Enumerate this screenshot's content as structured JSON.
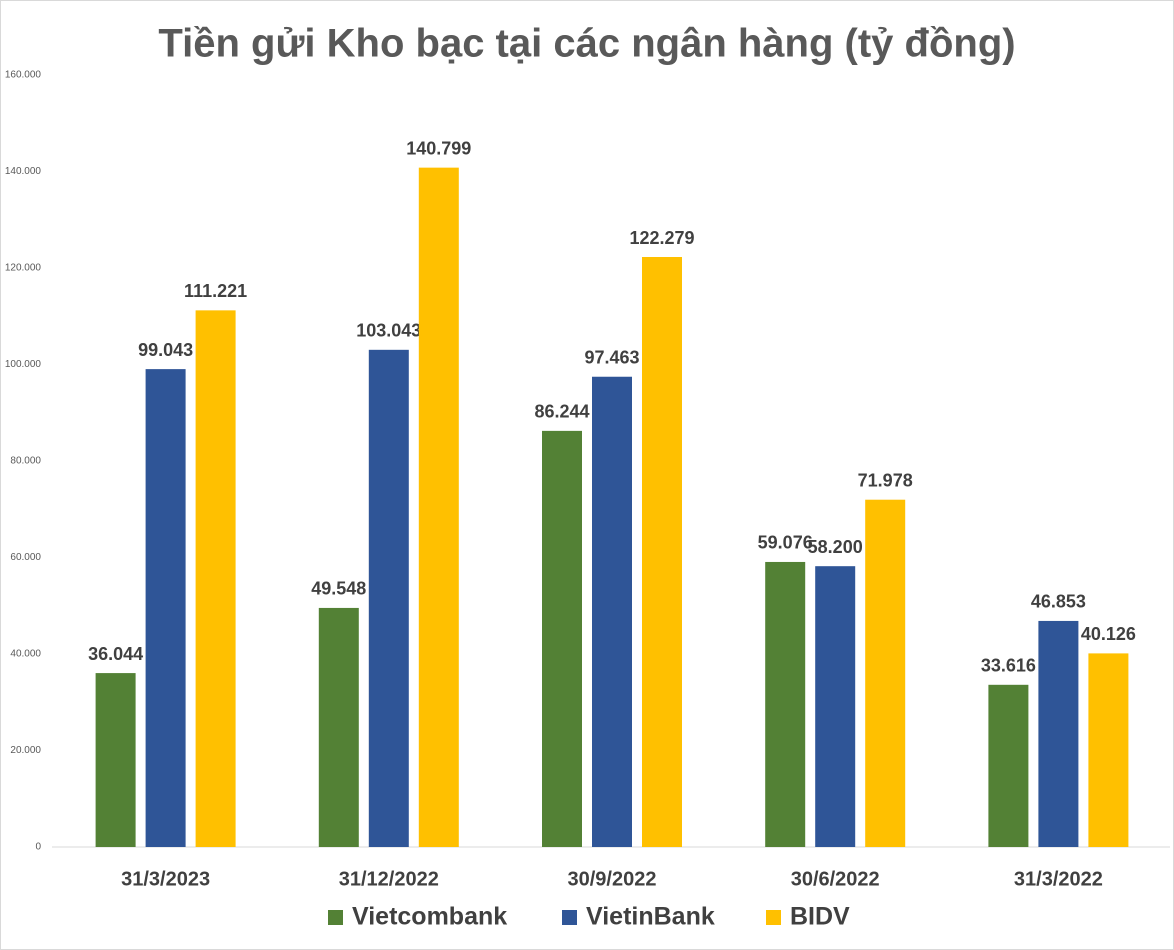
{
  "chart_data": {
    "type": "bar",
    "title": "Tiền gửi Kho bạc tại các ngân hàng (tỷ đồng)",
    "categories": [
      "31/3/2023",
      "31/12/2022",
      "30/9/2022",
      "30/6/2022",
      "31/3/2022"
    ],
    "series": [
      {
        "name": "Vietcombank",
        "color": "#538135",
        "values": [
          36044,
          49548,
          86244,
          59076,
          33616
        ],
        "value_labels": [
          "36.044",
          "49.548",
          "86.244",
          "59.076",
          "33.616"
        ]
      },
      {
        "name": "VietinBank",
        "color": "#2f5597",
        "values": [
          99043,
          103043,
          97463,
          58200,
          46853
        ],
        "value_labels": [
          "99.043",
          "103.043",
          "97.463",
          "58.200",
          "46.853"
        ]
      },
      {
        "name": "BIDV",
        "color": "#ffc000",
        "values": [
          111221,
          140799,
          122279,
          71978,
          40126
        ],
        "value_labels": [
          "111.221",
          "140.799",
          "122.279",
          "71.978",
          "40.126"
        ]
      }
    ],
    "ylim": [
      0,
      160000
    ],
    "yticks": [
      0,
      {
        "value": 20000,
        "label": "20.000"
      },
      {
        "value": 40000,
        "label": "40.000"
      },
      {
        "value": 60000,
        "label": "60.000"
      },
      {
        "value": 80000,
        "label": "80.000"
      },
      {
        "value": 100000,
        "label": "100.000"
      },
      {
        "value": 120000,
        "label": "120.000"
      },
      {
        "value": 140000,
        "label": "140.000"
      },
      {
        "value": 160000,
        "label": "160.000"
      }
    ],
    "grid": false,
    "legend": "bottom"
  }
}
